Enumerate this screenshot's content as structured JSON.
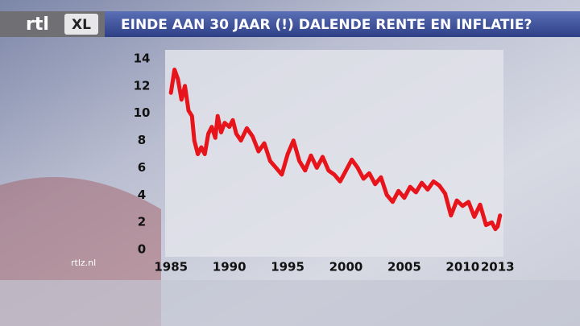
{
  "header": {
    "logo": "rtl",
    "logo_badge": "XL"
  },
  "footer": {
    "site": "rtlz.nl"
  },
  "chart_data": {
    "type": "line",
    "title": "EINDE AAN 30 JAAR (!) DALENDE RENTE EN INFLATIE?",
    "x": [
      1985.0,
      1985.3,
      1985.6,
      1985.9,
      1986.2,
      1986.5,
      1986.8,
      1987.0,
      1987.3,
      1987.6,
      1987.9,
      1988.2,
      1988.5,
      1988.8,
      1989.0,
      1989.3,
      1989.6,
      1990.0,
      1990.3,
      1990.6,
      1991.0,
      1991.5,
      1992.0,
      1992.5,
      1993.0,
      1993.5,
      1994.0,
      1994.5,
      1995.0,
      1995.5,
      1996.0,
      1996.5,
      1997.0,
      1997.5,
      1998.0,
      1998.5,
      1999.0,
      1999.5,
      2000.0,
      2000.5,
      2001.0,
      2001.5,
      2002.0,
      2002.5,
      2003.0,
      2003.5,
      2004.0,
      2004.5,
      2005.0,
      2005.5,
      2006.0,
      2006.5,
      2007.0,
      2007.5,
      2008.0,
      2008.5,
      2009.0,
      2009.5,
      2010.0,
      2010.5,
      2011.0,
      2011.5,
      2012.0,
      2012.5,
      2012.8,
      2013.0,
      2013.2
    ],
    "series": [
      {
        "name": "rente",
        "color": "#e8141b",
        "values": [
          11.5,
          13.2,
          12.5,
          11.0,
          12.0,
          10.2,
          9.8,
          8.0,
          7.0,
          7.5,
          7.0,
          8.5,
          9.0,
          8.2,
          9.8,
          8.6,
          9.3,
          9.0,
          9.5,
          8.5,
          8.0,
          8.9,
          8.3,
          7.2,
          7.8,
          6.5,
          6.0,
          5.5,
          7.0,
          8.0,
          6.5,
          5.8,
          6.9,
          6.0,
          6.8,
          5.8,
          5.5,
          5.0,
          5.8,
          6.6,
          6.0,
          5.2,
          5.6,
          4.8,
          5.3,
          4.0,
          3.5,
          4.3,
          3.8,
          4.6,
          4.2,
          4.9,
          4.4,
          5.0,
          4.7,
          4.1,
          2.5,
          3.6,
          3.2,
          3.5,
          2.4,
          3.3,
          1.8,
          2.0,
          1.5,
          1.7,
          2.5
        ]
      }
    ],
    "xlim": [
      1984.5,
      2013.5
    ],
    "ylim": [
      -0.5,
      14.5
    ],
    "xticks": [
      1985,
      1990,
      1995,
      2000,
      2005,
      2010,
      2013
    ],
    "yticks": [
      0,
      2,
      4,
      6,
      8,
      10,
      12,
      14
    ]
  }
}
